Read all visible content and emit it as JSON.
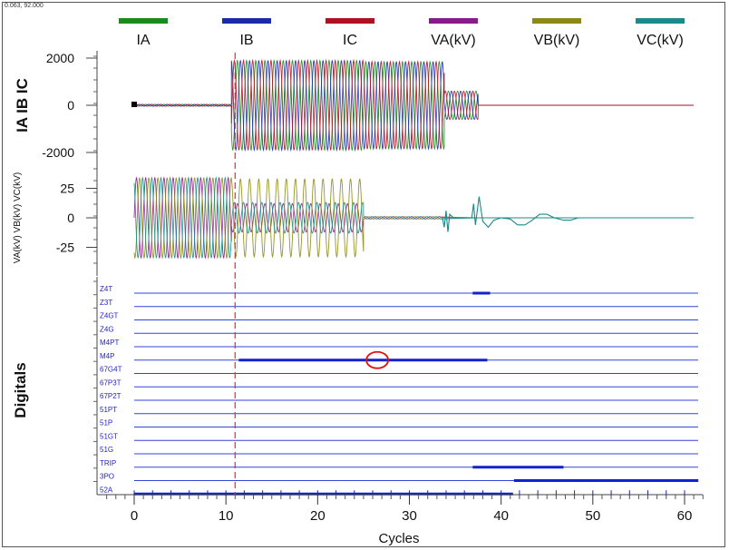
{
  "header": {
    "coordinate_readout": "0.063, 92.000"
  },
  "legend": [
    {
      "label": "IA",
      "color": "#1a8a1a"
    },
    {
      "label": "IB",
      "color": "#1a2aa8"
    },
    {
      "label": "IC",
      "color": "#b01020"
    },
    {
      "label": "VA(kV)",
      "color": "#8a1a8a"
    },
    {
      "label": "VB(kV)",
      "color": "#8c8a14"
    },
    {
      "label": "VC(kV)",
      "color": "#1a8a8a"
    }
  ],
  "chart_data": {
    "type": "line",
    "xlabel": "Cycles",
    "xlim": [
      -4,
      62
    ],
    "x_ticks": [
      0,
      10,
      20,
      30,
      40,
      50,
      60
    ],
    "cursor_x": 11,
    "marker_circle_x": 26.5,
    "panels": [
      {
        "ylabel": "IA IB IC",
        "ylim": [
          -2400,
          2400
        ],
        "y_ticks": [
          2000,
          0,
          -2000
        ],
        "y_tick_labels": [
          "2000",
          "0",
          "-2000"
        ],
        "series": [
          {
            "name": "IA",
            "segments": [
              [
                0,
                10.6,
                40
              ],
              [
                10.6,
                25,
                1900
              ],
              [
                25,
                33.8,
                1850
              ],
              [
                33.8,
                37.5,
                600
              ],
              [
                37.5,
                61,
                0
              ]
            ]
          },
          {
            "name": "IB",
            "segments": [
              [
                0,
                10.6,
                40
              ],
              [
                10.6,
                25,
                1900
              ],
              [
                25,
                33.8,
                1850
              ],
              [
                33.8,
                37.5,
                600
              ],
              [
                37.5,
                61,
                0
              ]
            ]
          },
          {
            "name": "IC",
            "segments": [
              [
                0,
                10.6,
                40
              ],
              [
                10.6,
                25,
                1900
              ],
              [
                25,
                33.8,
                1850
              ],
              [
                33.8,
                37.5,
                600
              ],
              [
                37.5,
                61,
                0
              ]
            ]
          }
        ]
      },
      {
        "ylabel": "VA(kV) VB(kV) VC(kV)",
        "ylim": [
          -40,
          40
        ],
        "y_ticks": [
          25,
          0,
          -25
        ],
        "y_tick_labels": [
          "25",
          "0",
          "-25"
        ],
        "series": [
          {
            "name": "VA(kV)",
            "segments": [
              [
                0,
                10.6,
                34
              ],
              [
                10.6,
                25,
                12
              ],
              [
                25,
                33.5,
                1
              ],
              [
                37.5,
                61,
                0
              ]
            ]
          },
          {
            "name": "VB(kV)",
            "segments": [
              [
                0,
                10.6,
                34
              ],
              [
                10.6,
                25,
                33
              ],
              [
                25,
                33.5,
                1
              ],
              [
                37.5,
                61,
                0
              ]
            ]
          },
          {
            "name": "VC(kV)",
            "segments": [
              [
                0,
                10.6,
                34
              ],
              [
                10.6,
                25,
                13
              ],
              [
                25,
                33.5,
                1
              ],
              [
                37.5,
                61,
                0
              ]
            ]
          }
        ]
      }
    ],
    "digitals": {
      "ylabel": "Digitals",
      "channels": [
        {
          "name": "Z4T",
          "active": [
            [
              36.9,
              38.8
            ]
          ]
        },
        {
          "name": "Z3T",
          "active": []
        },
        {
          "name": "Z4GT",
          "active": []
        },
        {
          "name": "Z4G",
          "active": []
        },
        {
          "name": "M4PT",
          "active": []
        },
        {
          "name": "M4P",
          "active": [
            [
              11.4,
              38.5
            ]
          ]
        },
        {
          "name": "67G4T",
          "active": []
        },
        {
          "name": "67P3T",
          "active": []
        },
        {
          "name": "67P2T",
          "active": []
        },
        {
          "name": "51PT",
          "active": []
        },
        {
          "name": "51P",
          "active": []
        },
        {
          "name": "51GT",
          "active": []
        },
        {
          "name": "51G",
          "active": []
        },
        {
          "name": "TRIP",
          "active": [
            [
              36.9,
              46.8
            ]
          ]
        },
        {
          "name": "3PO",
          "active": [
            [
              41.4,
              61.5
            ]
          ]
        },
        {
          "name": "52A",
          "active": [
            [
              0,
              41.3
            ]
          ]
        }
      ]
    }
  }
}
